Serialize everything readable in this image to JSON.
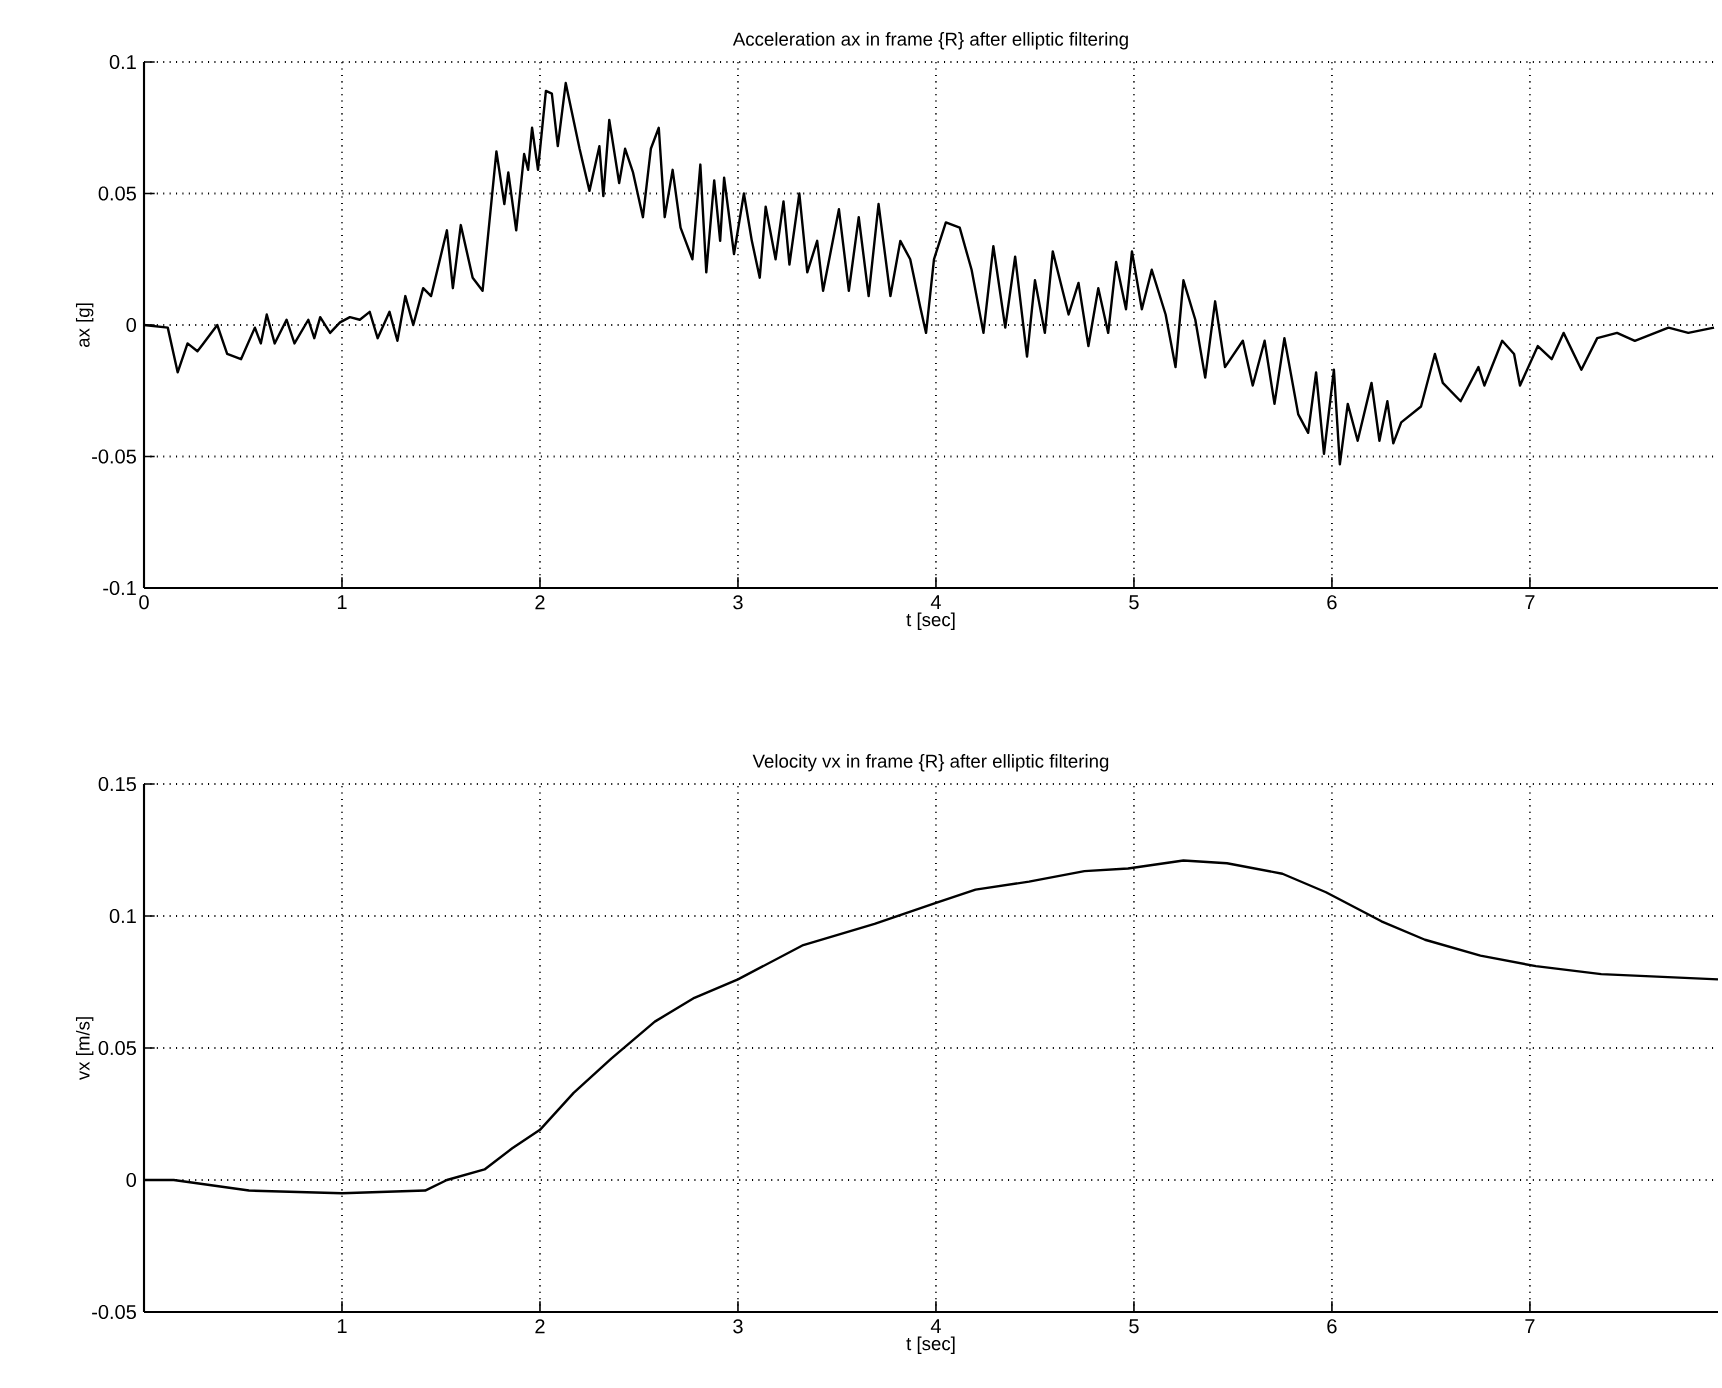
{
  "chart_data": [
    {
      "type": "line",
      "title": "Acceleration ax in frame {R} after elliptic filtering",
      "xlabel": "t [sec]",
      "ylabel": "ax [g]",
      "color": "#000000",
      "grid": true,
      "xlim": [
        0,
        7.95
      ],
      "ylim": [
        -0.1,
        0.1
      ],
      "xticks": [
        0,
        1,
        2,
        3,
        4,
        5,
        6,
        7
      ],
      "yticks": [
        -0.1,
        -0.05,
        0,
        0.05,
        0.1
      ],
      "x": [
        0,
        0.12,
        0.17,
        0.22,
        0.27,
        0.3,
        0.37,
        0.42,
        0.49,
        0.56,
        0.59,
        0.62,
        0.66,
        0.72,
        0.76,
        0.83,
        0.86,
        0.89,
        0.94,
        0.99,
        1.04,
        1.09,
        1.14,
        1.18,
        1.24,
        1.28,
        1.32,
        1.36,
        1.41,
        1.45,
        1.53,
        1.56,
        1.6,
        1.66,
        1.71,
        1.78,
        1.82,
        1.84,
        1.88,
        1.92,
        1.94,
        1.96,
        1.99,
        2.03,
        2.06,
        2.09,
        2.13,
        2.2,
        2.25,
        2.3,
        2.32,
        2.35,
        2.4,
        2.43,
        2.47,
        2.52,
        2.56,
        2.6,
        2.63,
        2.67,
        2.71,
        2.77,
        2.81,
        2.84,
        2.88,
        2.91,
        2.93,
        2.98,
        3.03,
        3.07,
        3.11,
        3.14,
        3.19,
        3.23,
        3.26,
        3.31,
        3.35,
        3.4,
        3.43,
        3.51,
        3.56,
        3.61,
        3.66,
        3.71,
        3.77,
        3.82,
        3.87,
        3.92,
        3.95,
        3.99,
        4.05,
        4.12,
        4.18,
        4.24,
        4.29,
        4.35,
        4.4,
        4.46,
        4.5,
        4.55,
        4.59,
        4.67,
        4.72,
        4.77,
        4.82,
        4.87,
        4.91,
        4.96,
        4.99,
        5.04,
        5.09,
        5.16,
        5.21,
        5.25,
        5.31,
        5.36,
        5.41,
        5.46,
        5.55,
        5.6,
        5.66,
        5.71,
        5.76,
        5.83,
        5.88,
        5.92,
        5.96,
        6.01,
        6.04,
        6.08,
        6.13,
        6.2,
        6.24,
        6.28,
        6.31,
        6.35,
        6.45,
        6.52,
        6.56,
        6.65,
        6.74,
        6.77,
        6.86,
        6.92,
        6.95,
        7.04,
        7.11,
        7.17,
        7.26,
        7.34,
        7.44,
        7.53,
        7.7,
        7.8,
        7.93
      ],
      "values": [
        0,
        -0.001,
        -0.018,
        -0.007,
        -0.01,
        -0.007,
        0,
        -0.011,
        -0.013,
        -0.001,
        -0.007,
        0.004,
        -0.007,
        0.002,
        -0.007,
        0.002,
        -0.005,
        0.003,
        -0.003,
        0.001,
        0.003,
        0.002,
        0.005,
        -0.005,
        0.005,
        -0.006,
        0.011,
        0,
        0.014,
        0.011,
        0.036,
        0.014,
        0.038,
        0.018,
        0.013,
        0.066,
        0.046,
        0.058,
        0.036,
        0.065,
        0.059,
        0.075,
        0.059,
        0.089,
        0.088,
        0.068,
        0.092,
        0.067,
        0.051,
        0.068,
        0.049,
        0.078,
        0.054,
        0.067,
        0.058,
        0.041,
        0.067,
        0.075,
        0.041,
        0.059,
        0.037,
        0.025,
        0.061,
        0.02,
        0.055,
        0.032,
        0.056,
        0.027,
        0.05,
        0.032,
        0.018,
        0.045,
        0.025,
        0.047,
        0.023,
        0.05,
        0.02,
        0.032,
        0.013,
        0.044,
        0.013,
        0.041,
        0.011,
        0.046,
        0.011,
        0.032,
        0.025,
        0.007,
        -0.003,
        0.025,
        0.039,
        0.037,
        0.021,
        -0.003,
        0.03,
        -0.001,
        0.026,
        -0.012,
        0.017,
        -0.003,
        0.028,
        0.004,
        0.016,
        -0.008,
        0.014,
        -0.003,
        0.024,
        0.006,
        0.028,
        0.006,
        0.021,
        0.004,
        -0.016,
        0.017,
        0.002,
        -0.02,
        0.009,
        -0.016,
        -0.006,
        -0.023,
        -0.006,
        -0.03,
        -0.005,
        -0.034,
        -0.041,
        -0.018,
        -0.049,
        -0.017,
        -0.053,
        -0.03,
        -0.044,
        -0.022,
        -0.044,
        -0.029,
        -0.045,
        -0.037,
        -0.031,
        -0.011,
        -0.022,
        -0.029,
        -0.016,
        -0.023,
        -0.006,
        -0.011,
        -0.023,
        -0.008,
        -0.013,
        -0.003,
        -0.017,
        -0.005,
        -0.003,
        -0.006,
        -0.001,
        -0.003,
        -0.001
      ]
    },
    {
      "type": "line",
      "title": "Velocity vx in frame {R} after elliptic filtering",
      "xlabel": "t [sec]",
      "ylabel": "vx [m/s]",
      "color": "#000000",
      "grid": true,
      "xlim": [
        0,
        7.95
      ],
      "ylim": [
        -0.05,
        0.15
      ],
      "xticks": [
        1,
        2,
        3,
        4,
        5,
        6,
        7
      ],
      "yticks": [
        -0.05,
        0,
        0.05,
        0.1,
        0.15
      ],
      "x": [
        0,
        0.15,
        0.53,
        1.0,
        1.42,
        1.53,
        1.72,
        1.86,
        2.0,
        2.17,
        2.36,
        2.58,
        2.78,
        3.0,
        3.33,
        3.69,
        4.0,
        4.2,
        4.47,
        4.75,
        4.97,
        5.25,
        5.47,
        5.75,
        5.97,
        6.25,
        6.47,
        6.75,
        7.03,
        7.36,
        7.95
      ],
      "values": [
        0,
        0,
        -0.004,
        -0.005,
        -0.004,
        0,
        0.004,
        0.012,
        0.019,
        0.033,
        0.046,
        0.06,
        0.069,
        0.076,
        0.089,
        0.097,
        0.105,
        0.11,
        0.113,
        0.117,
        0.118,
        0.121,
        0.12,
        0.116,
        0.109,
        0.098,
        0.091,
        0.085,
        0.081,
        0.078,
        0.076
      ]
    }
  ]
}
